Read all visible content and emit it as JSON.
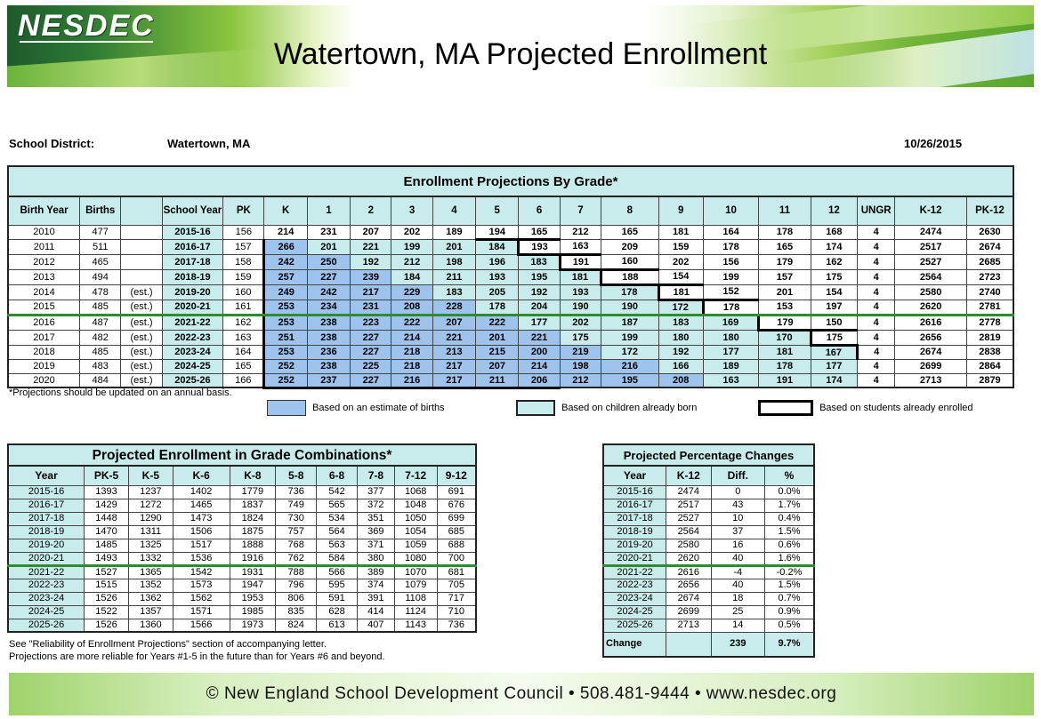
{
  "header": {
    "logo": "NESDEC",
    "title": "Watertown, MA Projected Enrollment"
  },
  "district": {
    "label": "School District:",
    "name": "Watertown, MA",
    "date": "10/26/2015"
  },
  "main": {
    "caption": "Enrollment Projections By Grade*",
    "headers": [
      "Birth Year",
      "Births",
      "",
      "School Year",
      "PK",
      "K",
      "1",
      "2",
      "3",
      "4",
      "5",
      "6",
      "7",
      "8",
      "9",
      "10",
      "11",
      "12",
      "UNGR",
      "K-12",
      "PK-12"
    ],
    "rows": [
      [
        "2010",
        "477",
        "",
        "2015-16",
        "156",
        "214",
        "231",
        "207",
        "202",
        "189",
        "194",
        "165",
        "212",
        "165",
        "181",
        "164",
        "178",
        "168",
        "4",
        "2474",
        "2630"
      ],
      [
        "2011",
        "511",
        "",
        "2016-17",
        "157",
        "266",
        "201",
        "221",
        "199",
        "201",
        "184",
        "193",
        "163",
        "209",
        "159",
        "178",
        "165",
        "174",
        "4",
        "2517",
        "2674"
      ],
      [
        "2012",
        "465",
        "",
        "2017-18",
        "158",
        "242",
        "250",
        "192",
        "212",
        "198",
        "196",
        "183",
        "191",
        "160",
        "202",
        "156",
        "179",
        "162",
        "4",
        "2527",
        "2685"
      ],
      [
        "2013",
        "494",
        "",
        "2018-19",
        "159",
        "257",
        "227",
        "239",
        "184",
        "211",
        "193",
        "195",
        "181",
        "188",
        "154",
        "199",
        "157",
        "175",
        "4",
        "2564",
        "2723"
      ],
      [
        "2014",
        "478",
        "(est.)",
        "2019-20",
        "160",
        "249",
        "242",
        "217",
        "229",
        "183",
        "205",
        "192",
        "193",
        "178",
        "181",
        "152",
        "201",
        "154",
        "4",
        "2580",
        "2740"
      ],
      [
        "2015",
        "485",
        "(est.)",
        "2020-21",
        "161",
        "253",
        "234",
        "231",
        "208",
        "228",
        "178",
        "204",
        "190",
        "190",
        "172",
        "178",
        "153",
        "197",
        "4",
        "2620",
        "2781"
      ],
      [
        "2016",
        "487",
        "(est.)",
        "2021-22",
        "162",
        "253",
        "238",
        "223",
        "222",
        "207",
        "222",
        "177",
        "202",
        "187",
        "183",
        "169",
        "179",
        "150",
        "4",
        "2616",
        "2778"
      ],
      [
        "2017",
        "482",
        "(est.)",
        "2022-23",
        "163",
        "251",
        "238",
        "227",
        "214",
        "221",
        "201",
        "221",
        "175",
        "199",
        "180",
        "180",
        "170",
        "175",
        "4",
        "2656",
        "2819"
      ],
      [
        "2018",
        "485",
        "(est.)",
        "2023-24",
        "164",
        "253",
        "236",
        "227",
        "218",
        "213",
        "215",
        "200",
        "219",
        "172",
        "192",
        "177",
        "181",
        "167",
        "4",
        "2674",
        "2838"
      ],
      [
        "2019",
        "483",
        "(est.)",
        "2024-25",
        "165",
        "252",
        "238",
        "225",
        "218",
        "217",
        "207",
        "214",
        "198",
        "216",
        "166",
        "189",
        "178",
        "177",
        "4",
        "2699",
        "2864"
      ],
      [
        "2020",
        "484",
        "(est.)",
        "2025-26",
        "166",
        "252",
        "237",
        "227",
        "216",
        "217",
        "211",
        "206",
        "212",
        "195",
        "208",
        "163",
        "191",
        "174",
        "4",
        "2713",
        "2879"
      ]
    ]
  },
  "notes": {
    "projection_note": "*Projections should be updated on an annual basis.",
    "legend_births": "Based on an estimate of births",
    "legend_born": "Based on children already born",
    "legend_enrolled": "Based on students already enrolled",
    "reliability1": "See \"Reliability of Enrollment Projections\" section of accompanying letter.",
    "reliability2": "Projections are more reliable for Years #1-5 in the future than for Years #6 and beyond."
  },
  "combo": {
    "caption": "Projected Enrollment in Grade Combinations*",
    "headers": [
      "Year",
      "PK-5",
      "K-5",
      "K-6",
      "K-8",
      "5-8",
      "6-8",
      "7-8",
      "7-12",
      "9-12"
    ],
    "rows": [
      [
        "2015-16",
        "1393",
        "1237",
        "1402",
        "1779",
        "736",
        "542",
        "377",
        "1068",
        "691"
      ],
      [
        "2016-17",
        "1429",
        "1272",
        "1465",
        "1837",
        "749",
        "565",
        "372",
        "1048",
        "676"
      ],
      [
        "2017-18",
        "1448",
        "1290",
        "1473",
        "1824",
        "730",
        "534",
        "351",
        "1050",
        "699"
      ],
      [
        "2018-19",
        "1470",
        "1311",
        "1506",
        "1875",
        "757",
        "564",
        "369",
        "1054",
        "685"
      ],
      [
        "2019-20",
        "1485",
        "1325",
        "1517",
        "1888",
        "768",
        "563",
        "371",
        "1059",
        "688"
      ],
      [
        "2020-21",
        "1493",
        "1332",
        "1536",
        "1916",
        "762",
        "584",
        "380",
        "1080",
        "700"
      ],
      [
        "2021-22",
        "1527",
        "1365",
        "1542",
        "1931",
        "788",
        "566",
        "389",
        "1070",
        "681"
      ],
      [
        "2022-23",
        "1515",
        "1352",
        "1573",
        "1947",
        "796",
        "595",
        "374",
        "1079",
        "705"
      ],
      [
        "2023-24",
        "1526",
        "1362",
        "1562",
        "1953",
        "806",
        "591",
        "391",
        "1108",
        "717"
      ],
      [
        "2024-25",
        "1522",
        "1357",
        "1571",
        "1985",
        "835",
        "628",
        "414",
        "1124",
        "710"
      ],
      [
        "2025-26",
        "1526",
        "1360",
        "1566",
        "1973",
        "824",
        "613",
        "407",
        "1143",
        "736"
      ]
    ]
  },
  "pct": {
    "caption": "Projected Percentage Changes",
    "headers": [
      "Year",
      "K-12",
      "Diff.",
      "%"
    ],
    "rows": [
      [
        "2015-16",
        "2474",
        "0",
        "0.0%"
      ],
      [
        "2016-17",
        "2517",
        "43",
        "1.7%"
      ],
      [
        "2017-18",
        "2527",
        "10",
        "0.4%"
      ],
      [
        "2018-19",
        "2564",
        "37",
        "1.5%"
      ],
      [
        "2019-20",
        "2580",
        "16",
        "0.6%"
      ],
      [
        "2020-21",
        "2620",
        "40",
        "1.6%"
      ],
      [
        "2021-22",
        "2616",
        "-4",
        "-0.2%"
      ],
      [
        "2022-23",
        "2656",
        "40",
        "1.5%"
      ],
      [
        "2023-24",
        "2674",
        "18",
        "0.7%"
      ],
      [
        "2024-25",
        "2699",
        "25",
        "0.9%"
      ],
      [
        "2025-26",
        "2713",
        "14",
        "0.5%"
      ]
    ],
    "change": {
      "label": "Change",
      "diff": "239",
      "pct": "9.7%"
    }
  },
  "footer": {
    "text": "© New England School Development Council • 508.481-9444 • www.nesdec.org"
  },
  "colors": {
    "teal": "#c8ecec",
    "blue": "#9ec3ec",
    "green_line": "#2e8b2e"
  }
}
